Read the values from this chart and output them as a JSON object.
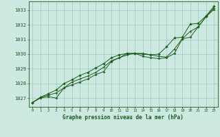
{
  "title": "Graphe pression niveau de la mer (hPa)",
  "xlabel_ticks": [
    "0",
    "1",
    "2",
    "3",
    "4",
    "5",
    "6",
    "7",
    "8",
    "9",
    "10",
    "11",
    "12",
    "13",
    "14",
    "15",
    "16",
    "17",
    "18",
    "19",
    "20",
    "21",
    "22",
    "23"
  ],
  "yticks": [
    1027,
    1028,
    1029,
    1030,
    1031,
    1032,
    1033
  ],
  "ylim": [
    1026.4,
    1033.6
  ],
  "xlim": [
    -0.5,
    23.5
  ],
  "bg_color": "#cce8e0",
  "grid_color": "#99ccbb",
  "line_color": "#1a5c1a",
  "series1": [
    1026.7,
    1027.0,
    1027.1,
    1027.0,
    1027.7,
    1027.9,
    1028.1,
    1028.3,
    1028.6,
    1028.8,
    1029.5,
    1029.75,
    1030.05,
    1030.05,
    1029.85,
    1029.75,
    1029.7,
    1029.75,
    1030.05,
    1031.05,
    1031.15,
    1031.85,
    1032.55,
    1033.05
  ],
  "series2": [
    1026.7,
    1027.05,
    1027.2,
    1027.35,
    1027.7,
    1028.1,
    1028.3,
    1028.5,
    1028.75,
    1029.1,
    1029.55,
    1029.75,
    1029.95,
    1030.05,
    1030.05,
    1029.95,
    1029.85,
    1029.8,
    1030.35,
    1031.05,
    1031.55,
    1031.85,
    1032.55,
    1033.15
  ],
  "series3": [
    1026.7,
    1027.05,
    1027.3,
    1027.55,
    1028.0,
    1028.25,
    1028.55,
    1028.75,
    1029.05,
    1029.35,
    1029.75,
    1029.95,
    1030.05,
    1030.05,
    1030.0,
    1029.95,
    1030.0,
    1030.5,
    1031.1,
    1031.15,
    1032.05,
    1032.1,
    1032.6,
    1033.25
  ]
}
